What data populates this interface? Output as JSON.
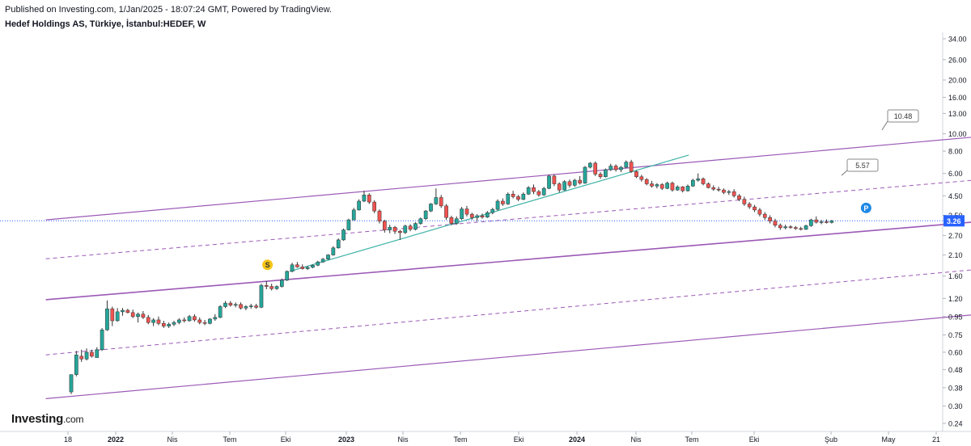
{
  "header": {
    "published": "Published on Investing.com, 1/Jan/2025 - 18:07:24 GMT, Powered by TradingView.",
    "symbol": "Hedef Holdings AS, Türkiye, İstanbul:HEDEF, W"
  },
  "logo": {
    "name": "Investing",
    "suffix": ".com"
  },
  "colors": {
    "up": "#26a69a",
    "down": "#ef5350",
    "channel": "#9b59b6",
    "trendline": "#3fb3a6",
    "price_line": "#2962ff",
    "axis_text": "#131722"
  },
  "chart_data": {
    "type": "candlestick",
    "title": "Hedef Holdings AS, Türkiye, İstanbul:HEDEF, W",
    "y_scale": "log",
    "y_ticks": [
      "34.00",
      "26.00",
      "20.00",
      "16.00",
      "13.00",
      "10.00",
      "8.00",
      "6.00",
      "4.50",
      "3.50",
      "2.70",
      "2.10",
      "1.60",
      "1.20",
      "0.95",
      "0.75",
      "0.60",
      "0.48",
      "0.38",
      "0.30",
      "0.24"
    ],
    "x_ticks": [
      "18",
      "2022",
      "Nis",
      "Tem",
      "Eki",
      "2023",
      "Nis",
      "Tem",
      "Eki",
      "2024",
      "Nis",
      "Tem",
      "Eki",
      "Şub",
      "May",
      "21"
    ],
    "last_price": "3.26",
    "channel_labels": [
      "10.48",
      "5.57"
    ],
    "markers": [
      {
        "text": "S",
        "date": "2022-08",
        "price": 1.85,
        "color": "#f5c518"
      },
      {
        "text": "P",
        "date": "2024-11",
        "price": 3.85,
        "color": "#1e88e5"
      }
    ],
    "channel_upper": {
      "start": {
        "date": "2021-10",
        "price": 3.3
      },
      "end": {
        "date": "2025-12",
        "price": 11.8
      }
    },
    "channel_mid": {
      "start": {
        "date": "2021-10",
        "price": 2.0
      },
      "end": {
        "date": "2025-12",
        "price": 6.7
      }
    },
    "channel_base": {
      "start": {
        "date": "2021-10",
        "price": 1.18
      },
      "end": {
        "date": "2025-12",
        "price": 3.9
      }
    },
    "channel_lower_mid": {
      "start": {
        "date": "2021-10",
        "price": 0.58
      },
      "end": {
        "date": "2025-12",
        "price": 2.15
      }
    },
    "channel_bottom": {
      "start": {
        "date": "2021-10",
        "price": 0.33
      },
      "end": {
        "date": "2025-12",
        "price": 1.2
      }
    },
    "trendline": {
      "start": {
        "date": "2022-09",
        "price": 1.7
      },
      "end": {
        "date": "2024-03",
        "price": 7.6
      }
    },
    "candles": [
      {
        "o": 0.36,
        "h": 0.45,
        "l": 0.35,
        "c": 0.45
      },
      {
        "o": 0.45,
        "h": 0.61,
        "l": 0.44,
        "c": 0.58
      },
      {
        "o": 0.57,
        "h": 0.62,
        "l": 0.53,
        "c": 0.55
      },
      {
        "o": 0.55,
        "h": 0.63,
        "l": 0.54,
        "c": 0.6
      },
      {
        "o": 0.6,
        "h": 0.62,
        "l": 0.56,
        "c": 0.57
      },
      {
        "o": 0.56,
        "h": 0.64,
        "l": 0.56,
        "c": 0.62
      },
      {
        "o": 0.62,
        "h": 0.82,
        "l": 0.61,
        "c": 0.8
      },
      {
        "o": 0.8,
        "h": 1.17,
        "l": 0.79,
        "c": 1.05
      },
      {
        "o": 1.05,
        "h": 1.08,
        "l": 0.84,
        "c": 0.9
      },
      {
        "o": 0.9,
        "h": 1.06,
        "l": 0.89,
        "c": 1.01
      },
      {
        "o": 1.01,
        "h": 1.06,
        "l": 0.96,
        "c": 1.03
      },
      {
        "o": 1.03,
        "h": 1.05,
        "l": 0.99,
        "c": 1.0
      },
      {
        "o": 1.0,
        "h": 1.04,
        "l": 0.93,
        "c": 0.95
      },
      {
        "o": 0.95,
        "h": 1.0,
        "l": 0.88,
        "c": 0.98
      },
      {
        "o": 0.98,
        "h": 1.02,
        "l": 0.92,
        "c": 0.94
      },
      {
        "o": 0.94,
        "h": 0.97,
        "l": 0.86,
        "c": 0.88
      },
      {
        "o": 0.88,
        "h": 0.93,
        "l": 0.84,
        "c": 0.91
      },
      {
        "o": 0.91,
        "h": 0.95,
        "l": 0.85,
        "c": 0.87
      },
      {
        "o": 0.87,
        "h": 0.9,
        "l": 0.82,
        "c": 0.84
      },
      {
        "o": 0.84,
        "h": 0.88,
        "l": 0.82,
        "c": 0.86
      },
      {
        "o": 0.86,
        "h": 0.9,
        "l": 0.84,
        "c": 0.88
      },
      {
        "o": 0.88,
        "h": 0.93,
        "l": 0.86,
        "c": 0.91
      },
      {
        "o": 0.91,
        "h": 0.94,
        "l": 0.88,
        "c": 0.9
      },
      {
        "o": 0.9,
        "h": 0.97,
        "l": 0.89,
        "c": 0.95
      },
      {
        "o": 0.95,
        "h": 0.98,
        "l": 0.89,
        "c": 0.91
      },
      {
        "o": 0.91,
        "h": 0.94,
        "l": 0.86,
        "c": 0.88
      },
      {
        "o": 0.88,
        "h": 0.91,
        "l": 0.85,
        "c": 0.87
      },
      {
        "o": 0.87,
        "h": 0.93,
        "l": 0.86,
        "c": 0.92
      },
      {
        "o": 0.92,
        "h": 0.98,
        "l": 0.9,
        "c": 0.94
      },
      {
        "o": 0.94,
        "h": 1.1,
        "l": 0.93,
        "c": 1.08
      },
      {
        "o": 1.08,
        "h": 1.16,
        "l": 1.06,
        "c": 1.13
      },
      {
        "o": 1.13,
        "h": 1.16,
        "l": 1.08,
        "c": 1.1
      },
      {
        "o": 1.1,
        "h": 1.14,
        "l": 1.07,
        "c": 1.11
      },
      {
        "o": 1.11,
        "h": 1.14,
        "l": 1.04,
        "c": 1.06
      },
      {
        "o": 1.06,
        "h": 1.1,
        "l": 1.03,
        "c": 1.08
      },
      {
        "o": 1.08,
        "h": 1.12,
        "l": 1.05,
        "c": 1.09
      },
      {
        "o": 1.09,
        "h": 1.12,
        "l": 1.05,
        "c": 1.07
      },
      {
        "o": 1.07,
        "h": 1.45,
        "l": 1.06,
        "c": 1.42
      },
      {
        "o": 1.42,
        "h": 1.5,
        "l": 1.35,
        "c": 1.4
      },
      {
        "o": 1.4,
        "h": 1.45,
        "l": 1.33,
        "c": 1.36
      },
      {
        "o": 1.36,
        "h": 1.42,
        "l": 1.34,
        "c": 1.4
      },
      {
        "o": 1.4,
        "h": 1.55,
        "l": 1.38,
        "c": 1.52
      },
      {
        "o": 1.52,
        "h": 1.72,
        "l": 1.5,
        "c": 1.7
      },
      {
        "o": 1.7,
        "h": 1.9,
        "l": 1.68,
        "c": 1.85
      },
      {
        "o": 1.85,
        "h": 1.92,
        "l": 1.78,
        "c": 1.8
      },
      {
        "o": 1.8,
        "h": 1.86,
        "l": 1.74,
        "c": 1.76
      },
      {
        "o": 1.76,
        "h": 1.82,
        "l": 1.73,
        "c": 1.79
      },
      {
        "o": 1.79,
        "h": 1.86,
        "l": 1.77,
        "c": 1.84
      },
      {
        "o": 1.84,
        "h": 1.95,
        "l": 1.82,
        "c": 1.92
      },
      {
        "o": 1.92,
        "h": 2.02,
        "l": 1.9,
        "c": 1.99
      },
      {
        "o": 1.99,
        "h": 2.12,
        "l": 1.97,
        "c": 2.1
      },
      {
        "o": 2.1,
        "h": 2.35,
        "l": 2.08,
        "c": 2.3
      },
      {
        "o": 2.3,
        "h": 2.6,
        "l": 2.28,
        "c": 2.55
      },
      {
        "o": 2.55,
        "h": 2.95,
        "l": 2.52,
        "c": 2.9
      },
      {
        "o": 2.9,
        "h": 3.35,
        "l": 2.88,
        "c": 3.3
      },
      {
        "o": 3.3,
        "h": 3.85,
        "l": 3.28,
        "c": 3.75
      },
      {
        "o": 3.75,
        "h": 4.3,
        "l": 3.72,
        "c": 4.2
      },
      {
        "o": 4.2,
        "h": 4.8,
        "l": 4.15,
        "c": 4.55
      },
      {
        "o": 4.55,
        "h": 4.65,
        "l": 4.05,
        "c": 4.15
      },
      {
        "o": 4.15,
        "h": 4.25,
        "l": 3.6,
        "c": 3.7
      },
      {
        "o": 3.7,
        "h": 3.78,
        "l": 3.15,
        "c": 3.25
      },
      {
        "o": 3.25,
        "h": 3.3,
        "l": 2.8,
        "c": 2.9
      },
      {
        "o": 2.9,
        "h": 3.1,
        "l": 2.78,
        "c": 3.0
      },
      {
        "o": 3.0,
        "h": 3.05,
        "l": 2.75,
        "c": 2.85
      },
      {
        "o": 2.85,
        "h": 2.9,
        "l": 2.55,
        "c": 2.8
      },
      {
        "o": 2.8,
        "h": 3.1,
        "l": 2.75,
        "c": 3.05
      },
      {
        "o": 3.05,
        "h": 3.12,
        "l": 2.85,
        "c": 2.92
      },
      {
        "o": 2.92,
        "h": 3.2,
        "l": 2.88,
        "c": 3.15
      },
      {
        "o": 3.15,
        "h": 3.4,
        "l": 3.1,
        "c": 3.35
      },
      {
        "o": 3.35,
        "h": 3.75,
        "l": 3.3,
        "c": 3.7
      },
      {
        "o": 3.7,
        "h": 4.1,
        "l": 3.65,
        "c": 4.05
      },
      {
        "o": 4.05,
        "h": 4.95,
        "l": 4.0,
        "c": 4.4
      },
      {
        "o": 4.4,
        "h": 4.55,
        "l": 3.85,
        "c": 3.95
      },
      {
        "o": 3.95,
        "h": 4.05,
        "l": 3.3,
        "c": 3.4
      },
      {
        "o": 3.4,
        "h": 3.48,
        "l": 3.08,
        "c": 3.15
      },
      {
        "o": 3.15,
        "h": 3.45,
        "l": 3.1,
        "c": 3.35
      },
      {
        "o": 3.35,
        "h": 3.9,
        "l": 3.3,
        "c": 3.8
      },
      {
        "o": 3.8,
        "h": 3.95,
        "l": 3.45,
        "c": 3.55
      },
      {
        "o": 3.55,
        "h": 3.62,
        "l": 3.3,
        "c": 3.4
      },
      {
        "o": 3.4,
        "h": 3.55,
        "l": 3.25,
        "c": 3.48
      },
      {
        "o": 3.48,
        "h": 3.58,
        "l": 3.35,
        "c": 3.42
      },
      {
        "o": 3.42,
        "h": 3.7,
        "l": 3.38,
        "c": 3.62
      },
      {
        "o": 3.62,
        "h": 3.85,
        "l": 3.55,
        "c": 3.78
      },
      {
        "o": 3.78,
        "h": 4.3,
        "l": 3.72,
        "c": 4.2
      },
      {
        "o": 4.2,
        "h": 4.35,
        "l": 3.95,
        "c": 4.05
      },
      {
        "o": 4.05,
        "h": 4.7,
        "l": 4.0,
        "c": 4.6
      },
      {
        "o": 4.6,
        "h": 4.8,
        "l": 4.35,
        "c": 4.45
      },
      {
        "o": 4.45,
        "h": 4.55,
        "l": 4.2,
        "c": 4.3
      },
      {
        "o": 4.3,
        "h": 4.7,
        "l": 4.25,
        "c": 4.6
      },
      {
        "o": 4.6,
        "h": 5.1,
        "l": 4.55,
        "c": 5.0
      },
      {
        "o": 5.0,
        "h": 5.2,
        "l": 4.6,
        "c": 4.75
      },
      {
        "o": 4.75,
        "h": 4.85,
        "l": 4.45,
        "c": 4.55
      },
      {
        "o": 4.55,
        "h": 5.05,
        "l": 4.5,
        "c": 4.95
      },
      {
        "o": 4.95,
        "h": 5.9,
        "l": 4.9,
        "c": 5.8
      },
      {
        "o": 5.8,
        "h": 5.95,
        "l": 5.1,
        "c": 5.25
      },
      {
        "o": 5.25,
        "h": 5.35,
        "l": 4.7,
        "c": 4.85
      },
      {
        "o": 4.85,
        "h": 5.5,
        "l": 4.8,
        "c": 5.4
      },
      {
        "o": 5.4,
        "h": 5.55,
        "l": 5.0,
        "c": 5.15
      },
      {
        "o": 5.15,
        "h": 5.6,
        "l": 5.05,
        "c": 5.5
      },
      {
        "o": 5.5,
        "h": 5.8,
        "l": 5.2,
        "c": 5.3
      },
      {
        "o": 5.3,
        "h": 6.6,
        "l": 5.25,
        "c": 6.5
      },
      {
        "o": 6.5,
        "h": 6.95,
        "l": 6.4,
        "c": 6.85
      },
      {
        "o": 6.85,
        "h": 7.0,
        "l": 5.8,
        "c": 5.95
      },
      {
        "o": 5.95,
        "h": 6.1,
        "l": 5.6,
        "c": 5.75
      },
      {
        "o": 5.75,
        "h": 6.4,
        "l": 5.7,
        "c": 6.3
      },
      {
        "o": 6.3,
        "h": 6.8,
        "l": 6.2,
        "c": 6.6
      },
      {
        "o": 6.6,
        "h": 6.75,
        "l": 6.15,
        "c": 6.3
      },
      {
        "o": 6.3,
        "h": 6.6,
        "l": 6.1,
        "c": 6.5
      },
      {
        "o": 6.5,
        "h": 7.1,
        "l": 6.4,
        "c": 6.95
      },
      {
        "o": 6.95,
        "h": 7.15,
        "l": 6.05,
        "c": 6.15
      },
      {
        "o": 6.15,
        "h": 6.25,
        "l": 5.65,
        "c": 5.75
      },
      {
        "o": 5.75,
        "h": 5.9,
        "l": 5.4,
        "c": 5.55
      },
      {
        "o": 5.55,
        "h": 5.65,
        "l": 5.15,
        "c": 5.25
      },
      {
        "o": 5.25,
        "h": 5.45,
        "l": 5.0,
        "c": 5.1
      },
      {
        "o": 5.1,
        "h": 5.3,
        "l": 4.95,
        "c": 5.2
      },
      {
        "o": 5.2,
        "h": 5.3,
        "l": 4.85,
        "c": 4.95
      },
      {
        "o": 4.95,
        "h": 5.4,
        "l": 4.9,
        "c": 5.3
      },
      {
        "o": 5.3,
        "h": 5.4,
        "l": 4.75,
        "c": 4.85
      },
      {
        "o": 4.85,
        "h": 5.15,
        "l": 4.8,
        "c": 5.05
      },
      {
        "o": 5.05,
        "h": 5.1,
        "l": 4.7,
        "c": 4.8
      },
      {
        "o": 4.8,
        "h": 5.2,
        "l": 4.75,
        "c": 5.1
      },
      {
        "o": 5.1,
        "h": 5.6,
        "l": 5.05,
        "c": 5.5
      },
      {
        "o": 5.5,
        "h": 6.0,
        "l": 5.4,
        "c": 5.6
      },
      {
        "o": 5.6,
        "h": 5.7,
        "l": 5.15,
        "c": 5.25
      },
      {
        "o": 5.25,
        "h": 5.35,
        "l": 4.95,
        "c": 5.0
      },
      {
        "o": 5.0,
        "h": 5.15,
        "l": 4.8,
        "c": 4.9
      },
      {
        "o": 4.9,
        "h": 5.05,
        "l": 4.75,
        "c": 4.85
      },
      {
        "o": 4.85,
        "h": 4.95,
        "l": 4.6,
        "c": 4.7
      },
      {
        "o": 4.7,
        "h": 4.85,
        "l": 4.55,
        "c": 4.75
      },
      {
        "o": 4.75,
        "h": 4.9,
        "l": 4.4,
        "c": 4.5
      },
      {
        "o": 4.5,
        "h": 4.6,
        "l": 4.2,
        "c": 4.3
      },
      {
        "o": 4.3,
        "h": 4.45,
        "l": 3.95,
        "c": 4.05
      },
      {
        "o": 4.05,
        "h": 4.15,
        "l": 3.8,
        "c": 3.9
      },
      {
        "o": 3.9,
        "h": 4.0,
        "l": 3.65,
        "c": 3.75
      },
      {
        "o": 3.75,
        "h": 3.85,
        "l": 3.45,
        "c": 3.55
      },
      {
        "o": 3.55,
        "h": 3.65,
        "l": 3.3,
        "c": 3.4
      },
      {
        "o": 3.4,
        "h": 3.5,
        "l": 3.15,
        "c": 3.25
      },
      {
        "o": 3.25,
        "h": 3.35,
        "l": 3.0,
        "c": 3.08
      },
      {
        "o": 3.08,
        "h": 3.15,
        "l": 2.9,
        "c": 2.98
      },
      {
        "o": 2.98,
        "h": 3.1,
        "l": 2.92,
        "c": 3.02
      },
      {
        "o": 3.02,
        "h": 3.08,
        "l": 2.94,
        "c": 2.99
      },
      {
        "o": 2.99,
        "h": 3.05,
        "l": 2.9,
        "c": 2.95
      },
      {
        "o": 2.95,
        "h": 3.02,
        "l": 2.88,
        "c": 2.92
      },
      {
        "o": 2.92,
        "h": 3.1,
        "l": 2.9,
        "c": 3.06
      },
      {
        "o": 3.06,
        "h": 3.35,
        "l": 3.02,
        "c": 3.3
      },
      {
        "o": 3.3,
        "h": 3.45,
        "l": 3.15,
        "c": 3.2
      },
      {
        "o": 3.2,
        "h": 3.3,
        "l": 3.12,
        "c": 3.22
      },
      {
        "o": 3.22,
        "h": 3.32,
        "l": 3.15,
        "c": 3.19
      },
      {
        "o": 3.19,
        "h": 3.3,
        "l": 3.15,
        "c": 3.26
      }
    ]
  }
}
